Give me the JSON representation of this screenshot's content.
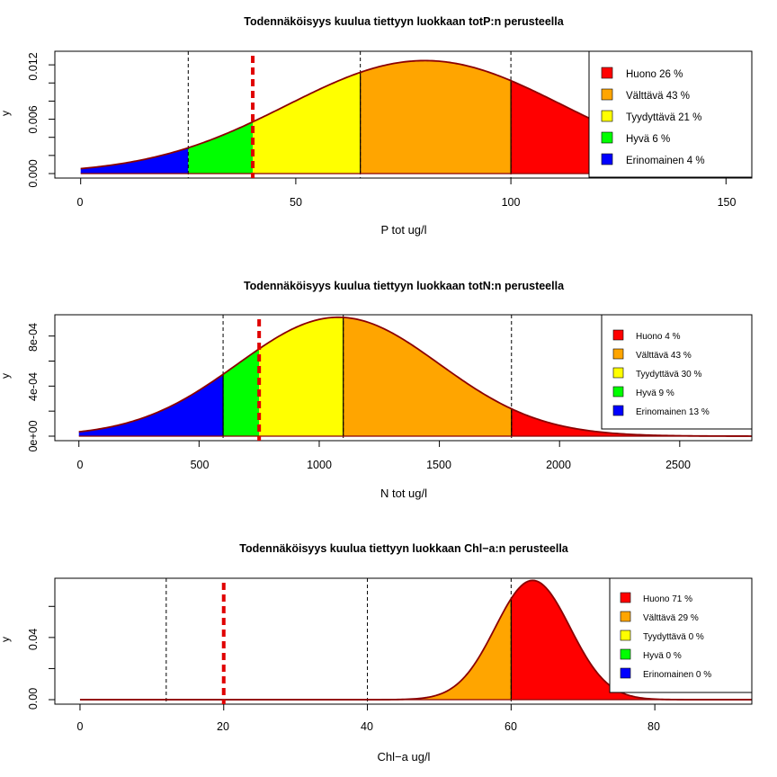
{
  "colors": {
    "Huono": "#ff0000",
    "Välttävä": "#ffa500",
    "Tyydyttävä": "#ffff00",
    "Hyvä": "#00ff00",
    "Erinomainen": "#0000ff",
    "marker": "#e00000",
    "curve": "#8b0000"
  },
  "chart_data": [
    {
      "type": "area",
      "title": "Todennäköisyys kuulua tiettyyn luokkaan totP:n perusteella",
      "xlabel": "P tot ug/l",
      "ylabel": "y",
      "distribution": {
        "kind": "normal",
        "mean": 80,
        "sd": 32
      },
      "xlim": [
        -6,
        156
      ],
      "ylim": [
        0,
        0.0135
      ],
      "x_ticks": [
        "0",
        "50",
        "100",
        "150"
      ],
      "y_ticks": [
        "0.000",
        "0.006",
        "0.012"
      ],
      "class_bounds": [
        0,
        25,
        40,
        65,
        100,
        156
      ],
      "class_colors": [
        "Erinomainen",
        "Hyvä",
        "Tyydyttävä",
        "Välttävä",
        "Huono"
      ],
      "dashed_lines": [
        25,
        65,
        100
      ],
      "solid_lines": [
        65,
        100
      ],
      "observed_value": 40,
      "legend": [
        {
          "label": "Huono 26 %",
          "color": "Huono"
        },
        {
          "label": "Välttävä 43 %",
          "color": "Välttävä"
        },
        {
          "label": "Tyydyttävä 21 %",
          "color": "Tyydyttävä"
        },
        {
          "label": "Hyvä 6 %",
          "color": "Hyvä"
        },
        {
          "label": "Erinomainen 4 %",
          "color": "Erinomainen"
        }
      ],
      "legend_position": "top-right"
    },
    {
      "type": "area",
      "title": "Todennäköisyys kuulua tiettyyn luokkaan totN:n perusteella",
      "xlabel": "N tot ug/l",
      "ylabel": "y",
      "distribution": {
        "kind": "normal",
        "mean": 1080,
        "sd": 420
      },
      "xlim": [
        -100,
        2800
      ],
      "ylim": [
        0,
        0.00097
      ],
      "x_ticks": [
        "0",
        "500",
        "1000",
        "1500",
        "2000",
        "2500"
      ],
      "y_ticks": [
        "0e+00",
        "4e-04",
        "8e-04"
      ],
      "class_bounds": [
        0,
        600,
        750,
        1100,
        1800,
        2800
      ],
      "class_colors": [
        "Erinomainen",
        "Hyvä",
        "Tyydyttävä",
        "Välttävä",
        "Huono"
      ],
      "dashed_lines": [
        600,
        1100,
        1800
      ],
      "solid_lines": [
        600,
        1100,
        1800
      ],
      "observed_value": 750,
      "legend": [
        {
          "label": "Huono 4 %",
          "color": "Huono"
        },
        {
          "label": "Välttävä 43 %",
          "color": "Välttävä"
        },
        {
          "label": "Tyydyttävä 30 %",
          "color": "Tyydyttävä"
        },
        {
          "label": "Hyvä 9 %",
          "color": "Hyvä"
        },
        {
          "label": "Erinomainen 13 %",
          "color": "Erinomainen"
        }
      ],
      "legend_position": "top-right"
    },
    {
      "type": "area",
      "title": "Todennäköisyys kuulua tiettyyn luokkaan Chl−a:n perusteella",
      "xlabel": "Chl−a ug/l",
      "ylabel": "y",
      "distribution": {
        "kind": "normal",
        "mean": 63,
        "sd": 5.2
      },
      "xlim": [
        -3.5,
        93.5
      ],
      "ylim": [
        0,
        0.0781
      ],
      "x_ticks": [
        "0",
        "20",
        "40",
        "60",
        "80"
      ],
      "y_ticks": [
        "0.00",
        "0.04"
      ],
      "class_bounds": [
        0,
        12,
        20,
        40,
        60,
        93.5
      ],
      "class_colors": [
        "Erinomainen",
        "Hyvä",
        "Tyydyttävä",
        "Välttävä",
        "Huono"
      ],
      "dashed_lines": [
        12,
        40,
        60
      ],
      "solid_lines": [
        60
      ],
      "observed_value": 20,
      "legend": [
        {
          "label": "Huono 71 %",
          "color": "Huono"
        },
        {
          "label": "Välttävä 29 %",
          "color": "Välttävä"
        },
        {
          "label": "Tyydyttävä 0 %",
          "color": "Tyydyttävä"
        },
        {
          "label": "Hyvä 0 %",
          "color": "Hyvä"
        },
        {
          "label": "Erinomainen 0 %",
          "color": "Erinomainen"
        }
      ],
      "legend_position": "top-right"
    }
  ]
}
